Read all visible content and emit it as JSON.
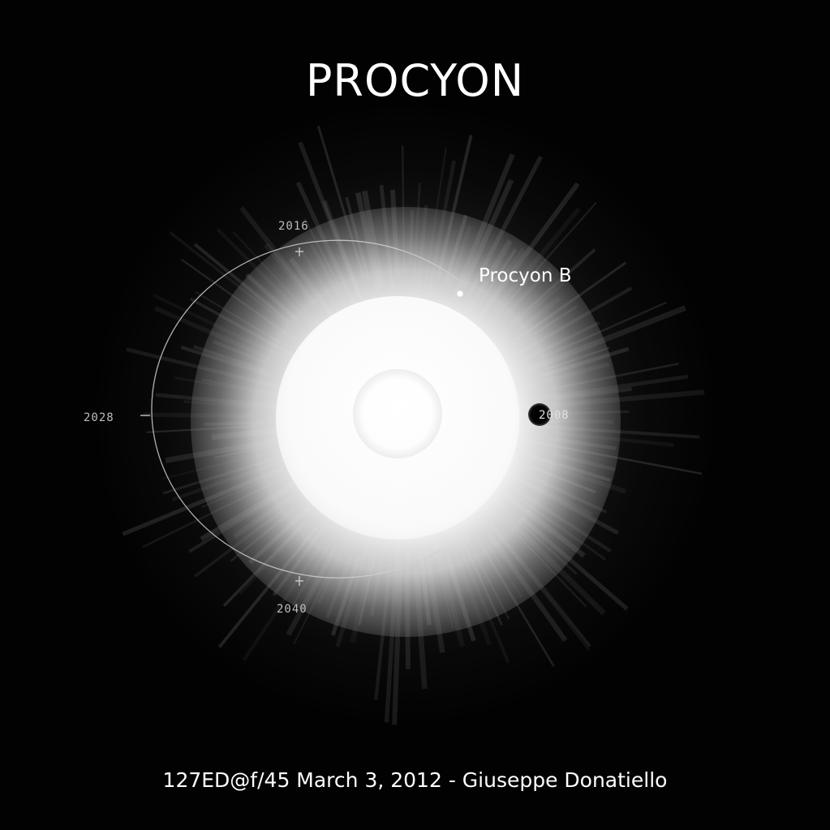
{
  "title": "PROCYON",
  "companion_label": "Procyon B",
  "orbit_years": {
    "top": "2016",
    "left": "2028",
    "bottom": "2040",
    "right": "2008"
  },
  "caption": "127ED@f/45 March 3, 2012 - Giuseppe Donatiello",
  "colors": {
    "background": "#020202",
    "text": "#ffffff",
    "orbit_line": "#cfcfcf",
    "year_text": "#bdbdbd"
  }
}
